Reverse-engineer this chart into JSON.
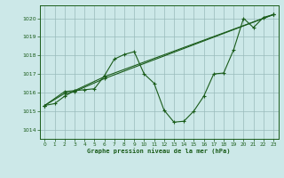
{
  "title": "Graphe pression niveau de la mer (hPa)",
  "bg_color": "#cce8e8",
  "grid_color": "#99bbbb",
  "line_color": "#1a5c1a",
  "xlim": [
    -0.5,
    23.5
  ],
  "ylim": [
    1013.5,
    1020.7
  ],
  "yticks": [
    1014,
    1015,
    1016,
    1017,
    1018,
    1019,
    1020
  ],
  "xticks": [
    0,
    1,
    2,
    3,
    4,
    5,
    6,
    7,
    8,
    9,
    10,
    11,
    12,
    13,
    14,
    15,
    16,
    17,
    18,
    19,
    20,
    21,
    22,
    23
  ],
  "series1_x": [
    0,
    1,
    2,
    3,
    4,
    5,
    6,
    7,
    8,
    9,
    10,
    11,
    12,
    13,
    14,
    15,
    16,
    17,
    18,
    19,
    20,
    21,
    22,
    23
  ],
  "series1_y": [
    1015.3,
    1015.4,
    1015.8,
    1016.1,
    1016.15,
    1016.2,
    1016.9,
    1017.8,
    1018.05,
    1018.2,
    1017.0,
    1016.5,
    1015.05,
    1014.4,
    1014.45,
    1015.0,
    1015.8,
    1017.0,
    1017.05,
    1018.3,
    1020.0,
    1019.5,
    1020.05,
    1020.2
  ],
  "series2_x": [
    0,
    2,
    3,
    6,
    23
  ],
  "series2_y": [
    1015.3,
    1016.05,
    1016.1,
    1016.85,
    1020.2
  ],
  "series3_x": [
    0,
    2,
    3,
    6,
    23
  ],
  "series3_y": [
    1015.3,
    1015.95,
    1016.05,
    1016.75,
    1020.2
  ]
}
